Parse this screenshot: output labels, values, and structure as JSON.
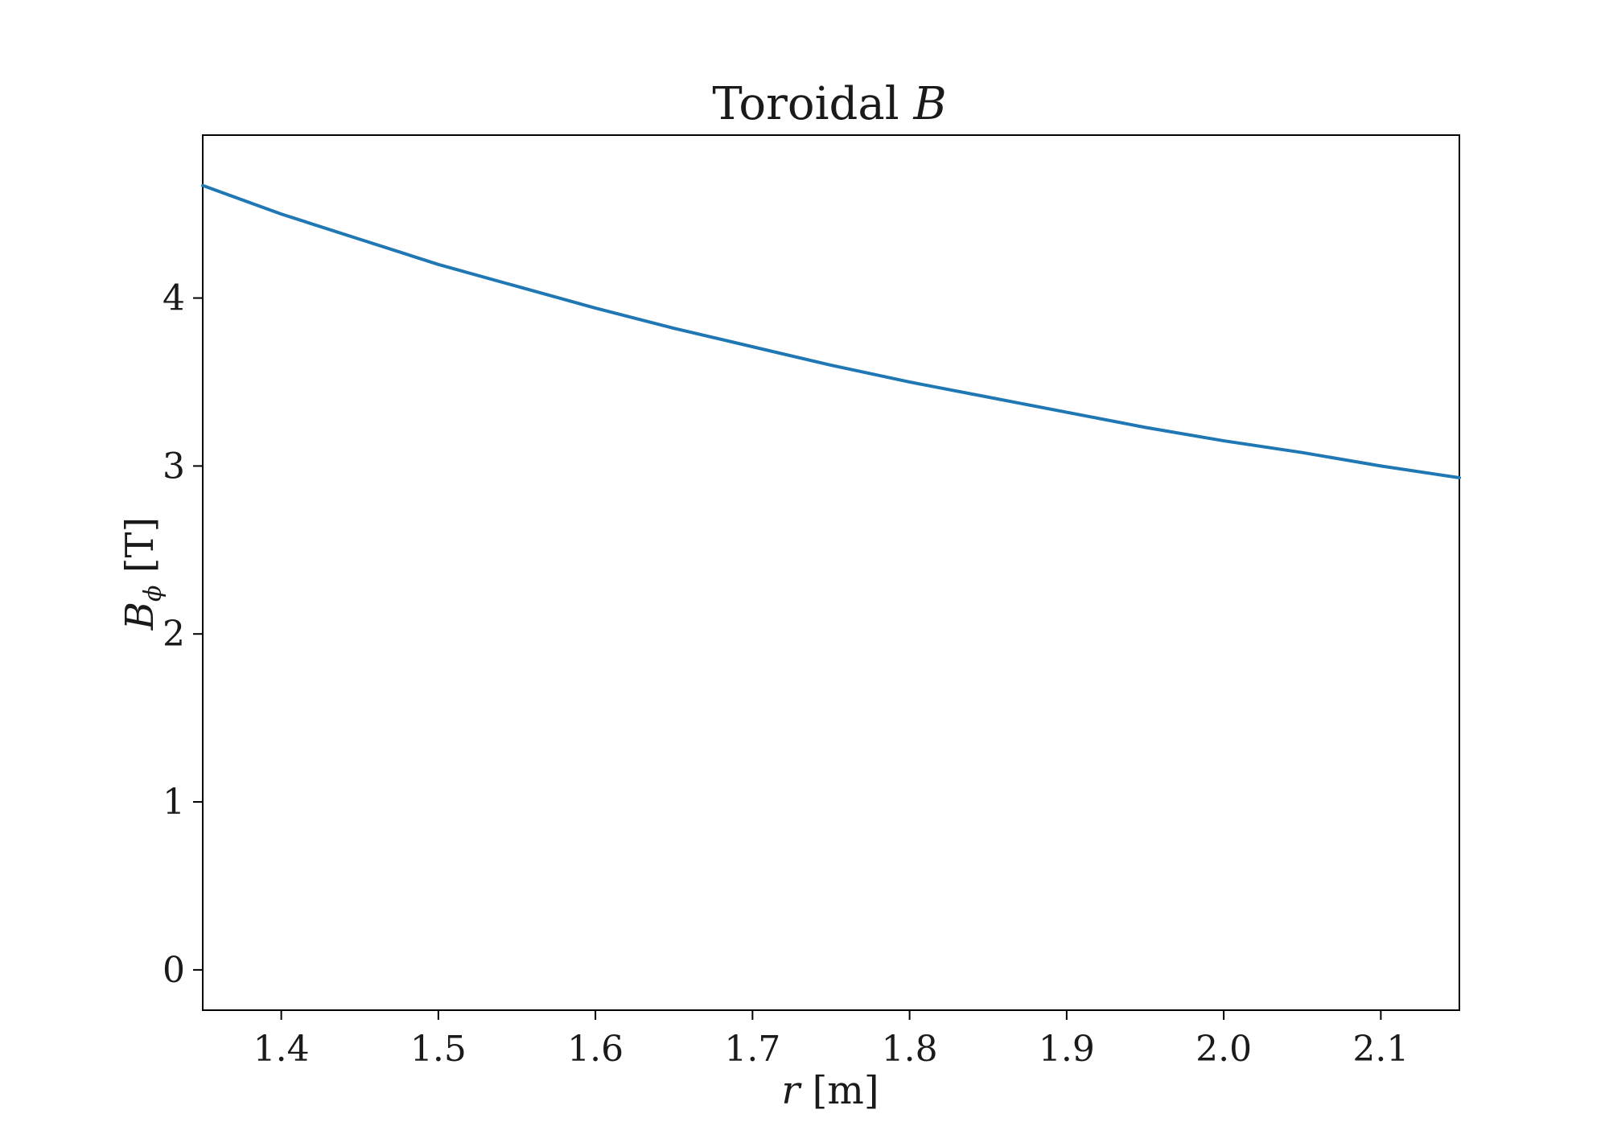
{
  "chart_data": {
    "type": "line",
    "title": {
      "main": "Toroidal ",
      "var": "B"
    },
    "xlabel": {
      "var": "r",
      "unit": " [m]"
    },
    "ylabel": {
      "var": "B",
      "sub": "ϕ",
      "unit": " [T]"
    },
    "xlim": [
      1.35,
      2.15
    ],
    "ylim": [
      -0.24,
      4.97
    ],
    "grid": false,
    "legend": "none",
    "x_ticks": [
      1.4,
      1.5,
      1.6,
      1.7,
      1.8,
      1.9,
      2.0,
      2.1
    ],
    "x_tick_labels": [
      "1.4",
      "1.5",
      "1.6",
      "1.7",
      "1.8",
      "1.9",
      "2.0",
      "2.1"
    ],
    "y_ticks": [
      0,
      1,
      2,
      3,
      4
    ],
    "y_tick_labels": [
      "0",
      "1",
      "2",
      "3",
      "4"
    ],
    "series": [
      {
        "color": "#1f77b4",
        "x": [
          1.35,
          1.4,
          1.45,
          1.5,
          1.55,
          1.6,
          1.65,
          1.7,
          1.75,
          1.8,
          1.85,
          1.9,
          1.95,
          2.0,
          2.05,
          2.1,
          2.15
        ],
        "values": [
          4.67,
          4.5,
          4.35,
          4.2,
          4.07,
          3.94,
          3.82,
          3.71,
          3.6,
          3.5,
          3.41,
          3.32,
          3.23,
          3.15,
          3.08,
          3.0,
          2.93
        ]
      }
    ]
  }
}
